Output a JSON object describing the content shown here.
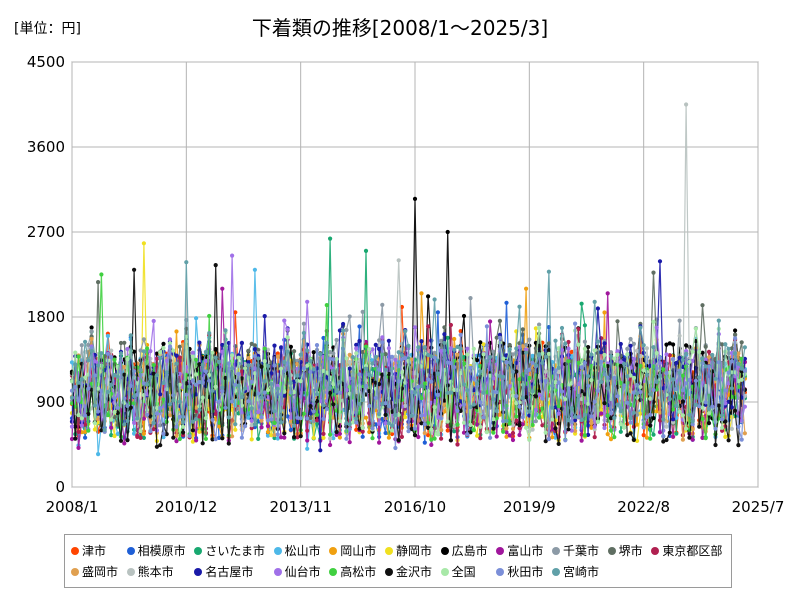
{
  "chart_data": {
    "type": "line",
    "title": "下着類の推移[2008/1～2025/3]",
    "unit_label": "[単位：円]",
    "xlabel": "",
    "ylabel": "",
    "ylim": [
      0,
      4500
    ],
    "yticks": [
      "0",
      "900",
      "1800",
      "2700",
      "3600",
      "4500"
    ],
    "xlim": [
      "2008/1",
      "2025/7"
    ],
    "xticks": [
      "2008/1",
      "2010/12",
      "2013/11",
      "2016/10",
      "2019/9",
      "2022/8",
      "2025/7"
    ],
    "grid": true,
    "legend_position": "bottom",
    "series": [
      {
        "name": "津市",
        "color": "#ff4500",
        "peaks": [
          [
            "2012/3",
            1850
          ],
          [
            "2024/12",
            1250
          ]
        ]
      },
      {
        "name": "相模原市",
        "color": "#1f5fd6",
        "peaks": [
          [
            "2017/5",
            1850
          ],
          [
            "2019/2",
            1950
          ]
        ]
      },
      {
        "name": "さいたま市",
        "color": "#18a870",
        "peaks": [
          [
            "2014/8",
            2630
          ],
          [
            "2015/7",
            2500
          ]
        ]
      },
      {
        "name": "松山市",
        "color": "#4db8e8",
        "peaks": [
          [
            "2012/9",
            2300
          ]
        ]
      },
      {
        "name": "岡山市",
        "color": "#f0a010",
        "peaks": [
          [
            "2016/12",
            2050
          ],
          [
            "2019/8",
            2100
          ]
        ]
      },
      {
        "name": "静岡市",
        "color": "#f0e020",
        "peaks": [
          [
            "2009/11",
            2580
          ]
        ]
      },
      {
        "name": "広島市",
        "color": "#000000",
        "peaks": [
          [
            "2016/10",
            3050
          ],
          [
            "2017/8",
            2700
          ]
        ]
      },
      {
        "name": "富山市",
        "color": "#a0169c",
        "peaks": [
          [
            "2011/11",
            2100
          ],
          [
            "2021/9",
            2050
          ]
        ]
      },
      {
        "name": "千葉市",
        "color": "#8c9aa6",
        "peaks": [
          [
            "2018/3",
            2000
          ]
        ]
      },
      {
        "name": "堺市",
        "color": "#5f6e62",
        "peaks": [
          [
            "2008/9",
            2170
          ],
          [
            "2022/11",
            2270
          ]
        ]
      },
      {
        "name": "東京都区部",
        "color": "#b02050",
        "peaks": [
          [
            "2017/2",
            1700
          ]
        ]
      },
      {
        "name": "盛岡市",
        "color": "#e0a050",
        "peaks": [
          [
            "2011/4",
            1500
          ]
        ]
      },
      {
        "name": "熊本市",
        "color": "#b8c2c0",
        "peaks": [
          [
            "2023/9",
            4050
          ],
          [
            "2016/5",
            2400
          ]
        ]
      },
      {
        "name": "名古屋市",
        "color": "#1a1aa8",
        "peaks": [
          [
            "2023/1",
            2390
          ]
        ]
      },
      {
        "name": "仙台市",
        "color": "#a070e8",
        "peaks": [
          [
            "2012/2",
            2450
          ]
        ]
      },
      {
        "name": "高松市",
        "color": "#40d040",
        "peaks": [
          [
            "2008/10",
            2250
          ]
        ]
      },
      {
        "name": "金沢市",
        "color": "#101010",
        "peaks": [
          [
            "2009/8",
            2300
          ],
          [
            "2011/9",
            2350
          ]
        ]
      },
      {
        "name": "全国",
        "color": "#a8e8a8",
        "peaks": [
          [
            "2014/2",
            1350
          ]
        ]
      },
      {
        "name": "秋田市",
        "color": "#7b8fd8",
        "peaks": [
          [
            "2018/8",
            1700
          ]
        ]
      },
      {
        "name": "宮崎市",
        "color": "#60a0a8",
        "peaks": [
          [
            "2010/12",
            2380
          ],
          [
            "2020/3",
            2280
          ]
        ]
      }
    ]
  }
}
